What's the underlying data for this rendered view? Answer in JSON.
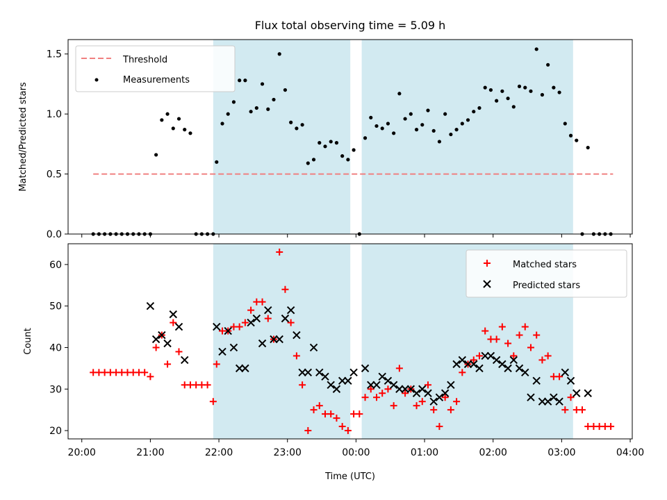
{
  "chart_data": [
    {
      "type": "scatter",
      "title": "Flux total observing time = 5.09 h",
      "xlabel": "",
      "ylabel": "Matched/Predicted stars",
      "ylim": [
        0,
        1.62
      ],
      "yticks": [
        "0.0",
        "0.5",
        "1.0",
        "1.5"
      ],
      "xlim_hours": [
        19.8,
        28.03
      ],
      "shaded_intervals": [
        [
          "21:55",
          "23:55"
        ],
        [
          "00:05",
          "03:10"
        ]
      ],
      "shade_color": "#add8e6",
      "legend_position": "top-left",
      "threshold": {
        "name": "Threshold",
        "value": 0.5,
        "x_range": [
          "20:10",
          "03:45"
        ],
        "color": "#f08080"
      },
      "series": [
        {
          "name": "Measurements",
          "color": "#000000",
          "x": [
            "20:10",
            "20:15",
            "20:20",
            "20:25",
            "20:30",
            "20:35",
            "20:40",
            "20:45",
            "20:50",
            "20:55",
            "21:00",
            "21:05",
            "21:10",
            "21:15",
            "21:20",
            "21:25",
            "21:30",
            "21:35",
            "21:40",
            "21:45",
            "21:50",
            "21:55",
            "21:58",
            "22:03",
            "22:08",
            "22:13",
            "22:18",
            "22:23",
            "22:28",
            "22:33",
            "22:38",
            "22:43",
            "22:48",
            "22:53",
            "22:58",
            "23:03",
            "23:08",
            "23:13",
            "23:18",
            "23:23",
            "23:28",
            "23:33",
            "23:38",
            "23:43",
            "23:48",
            "23:53",
            "23:58",
            "00:03",
            "00:08",
            "00:13",
            "00:18",
            "00:23",
            "00:28",
            "00:33",
            "00:38",
            "00:43",
            "00:48",
            "00:53",
            "00:58",
            "01:03",
            "01:08",
            "01:13",
            "01:18",
            "01:23",
            "01:28",
            "01:33",
            "01:38",
            "01:43",
            "01:48",
            "01:53",
            "01:58",
            "02:03",
            "02:08",
            "02:13",
            "02:18",
            "02:23",
            "02:28",
            "02:33",
            "02:38",
            "02:43",
            "02:48",
            "02:53",
            "02:58",
            "03:03",
            "03:08",
            "03:13",
            "03:18",
            "03:23",
            "03:28",
            "03:33",
            "03:38",
            "03:43"
          ],
          "y": [
            0,
            0,
            0,
            0,
            0,
            0,
            0,
            0,
            0,
            0,
            0,
            0.66,
            0.95,
            1.0,
            0.88,
            0.96,
            0.87,
            0.84,
            0,
            0,
            0,
            0,
            0.6,
            0.92,
            1.0,
            1.1,
            1.28,
            1.28,
            1.02,
            1.05,
            1.25,
            1.04,
            1.12,
            1.5,
            1.2,
            0.93,
            0.88,
            0.91,
            0.59,
            0.62,
            0.76,
            0.73,
            0.77,
            0.76,
            0.65,
            0.62,
            0.7,
            0,
            0.8,
            0.97,
            0.9,
            0.88,
            0.92,
            0.84,
            1.17,
            0.96,
            1.0,
            0.87,
            0.91,
            1.03,
            0.86,
            0.77,
            1.0,
            0.83,
            0.87,
            0.92,
            0.95,
            1.02,
            1.05,
            1.22,
            1.2,
            1.11,
            1.19,
            1.13,
            1.06,
            1.23,
            1.22,
            1.19,
            1.54,
            1.16,
            1.41,
            1.22,
            1.18,
            0.92,
            0.82,
            0.78,
            0,
            0.72,
            0,
            0,
            0,
            0
          ]
        }
      ]
    },
    {
      "type": "scatter",
      "title": "",
      "xlabel": "Time (UTC)",
      "ylabel": "Count",
      "ylim": [
        18,
        65
      ],
      "yticks": [
        "20",
        "30",
        "40",
        "50",
        "60"
      ],
      "xlim_hours": [
        19.8,
        28.03
      ],
      "xticks": [
        "20:00",
        "21:00",
        "22:00",
        "23:00",
        "00:00",
        "01:00",
        "02:00",
        "03:00",
        "04:00"
      ],
      "shaded_intervals": [
        [
          "21:55",
          "23:55"
        ],
        [
          "00:05",
          "03:10"
        ]
      ],
      "shade_color": "#add8e6",
      "legend_position": "top-right",
      "series": [
        {
          "name": "Matched stars",
          "marker": "plus",
          "color": "#ff0000",
          "x": [
            "20:10",
            "20:15",
            "20:20",
            "20:25",
            "20:30",
            "20:35",
            "20:40",
            "20:45",
            "20:50",
            "20:55",
            "21:00",
            "21:05",
            "21:10",
            "21:15",
            "21:20",
            "21:25",
            "21:30",
            "21:35",
            "21:40",
            "21:45",
            "21:50",
            "21:55",
            "21:58",
            "22:03",
            "22:08",
            "22:13",
            "22:18",
            "22:23",
            "22:28",
            "22:33",
            "22:38",
            "22:43",
            "22:48",
            "22:53",
            "22:58",
            "23:03",
            "23:08",
            "23:13",
            "23:18",
            "23:23",
            "23:28",
            "23:33",
            "23:38",
            "23:43",
            "23:48",
            "23:53",
            "23:58",
            "00:03",
            "00:08",
            "00:13",
            "00:18",
            "00:23",
            "00:28",
            "00:33",
            "00:38",
            "00:43",
            "00:48",
            "00:53",
            "00:58",
            "01:03",
            "01:08",
            "01:13",
            "01:18",
            "01:23",
            "01:28",
            "01:33",
            "01:38",
            "01:43",
            "01:48",
            "01:53",
            "01:58",
            "02:03",
            "02:08",
            "02:13",
            "02:18",
            "02:23",
            "02:28",
            "02:33",
            "02:38",
            "02:43",
            "02:48",
            "02:53",
            "02:58",
            "03:03",
            "03:08",
            "03:13",
            "03:18",
            "03:23",
            "03:28",
            "03:33",
            "03:38",
            "03:43"
          ],
          "y": [
            34,
            34,
            34,
            34,
            34,
            34,
            34,
            34,
            34,
            34,
            33,
            40,
            43,
            36,
            46,
            39,
            31,
            31,
            31,
            31,
            31,
            27,
            36,
            44,
            44,
            45,
            45,
            46,
            49,
            51,
            51,
            47,
            42,
            63,
            54,
            46,
            38,
            31,
            20,
            25,
            26,
            24,
            24,
            23,
            21,
            20,
            24,
            24,
            28,
            30,
            28,
            29,
            30,
            26,
            35,
            29,
            30,
            26,
            27,
            31,
            25,
            21,
            28,
            25,
            27,
            34,
            36,
            37,
            38,
            44,
            42,
            42,
            45,
            41,
            38,
            43,
            45,
            40,
            43,
            37,
            38,
            33,
            33,
            25,
            28,
            25,
            25,
            21,
            21,
            21,
            21,
            21
          ]
        },
        {
          "name": "Predicted stars",
          "marker": "x",
          "color": "#000000",
          "x": [
            "21:00",
            "21:05",
            "21:10",
            "21:15",
            "21:20",
            "21:25",
            "21:30",
            "21:58",
            "22:03",
            "22:08",
            "22:13",
            "22:18",
            "22:23",
            "22:28",
            "22:33",
            "22:38",
            "22:43",
            "22:48",
            "22:53",
            "22:58",
            "23:03",
            "23:08",
            "23:13",
            "23:18",
            "23:23",
            "23:28",
            "23:33",
            "23:38",
            "23:43",
            "23:48",
            "23:53",
            "23:58",
            "00:08",
            "00:13",
            "00:18",
            "00:23",
            "00:28",
            "00:33",
            "00:38",
            "00:43",
            "00:48",
            "00:53",
            "00:58",
            "01:03",
            "01:08",
            "01:13",
            "01:18",
            "01:23",
            "01:28",
            "01:33",
            "01:38",
            "01:43",
            "01:48",
            "01:53",
            "01:58",
            "02:03",
            "02:08",
            "02:13",
            "02:18",
            "02:23",
            "02:28",
            "02:33",
            "02:38",
            "02:43",
            "02:48",
            "02:53",
            "02:58",
            "03:03",
            "03:08",
            "03:13",
            "03:23"
          ],
          "y": [
            50,
            42,
            43,
            41,
            48,
            45,
            37,
            45,
            39,
            44,
            40,
            35,
            35,
            46,
            47,
            41,
            49,
            42,
            42,
            47,
            49,
            43,
            34,
            34,
            40,
            34,
            33,
            31,
            30,
            32,
            32,
            34,
            35,
            31,
            31,
            33,
            32,
            31,
            30,
            30,
            30,
            29,
            30,
            29,
            27,
            28,
            29,
            31,
            36,
            37,
            36,
            36,
            35,
            38,
            38,
            37,
            36,
            35,
            37,
            35,
            34,
            28,
            32,
            27,
            27,
            28,
            27,
            34,
            32,
            29,
            29
          ]
        }
      ]
    }
  ]
}
